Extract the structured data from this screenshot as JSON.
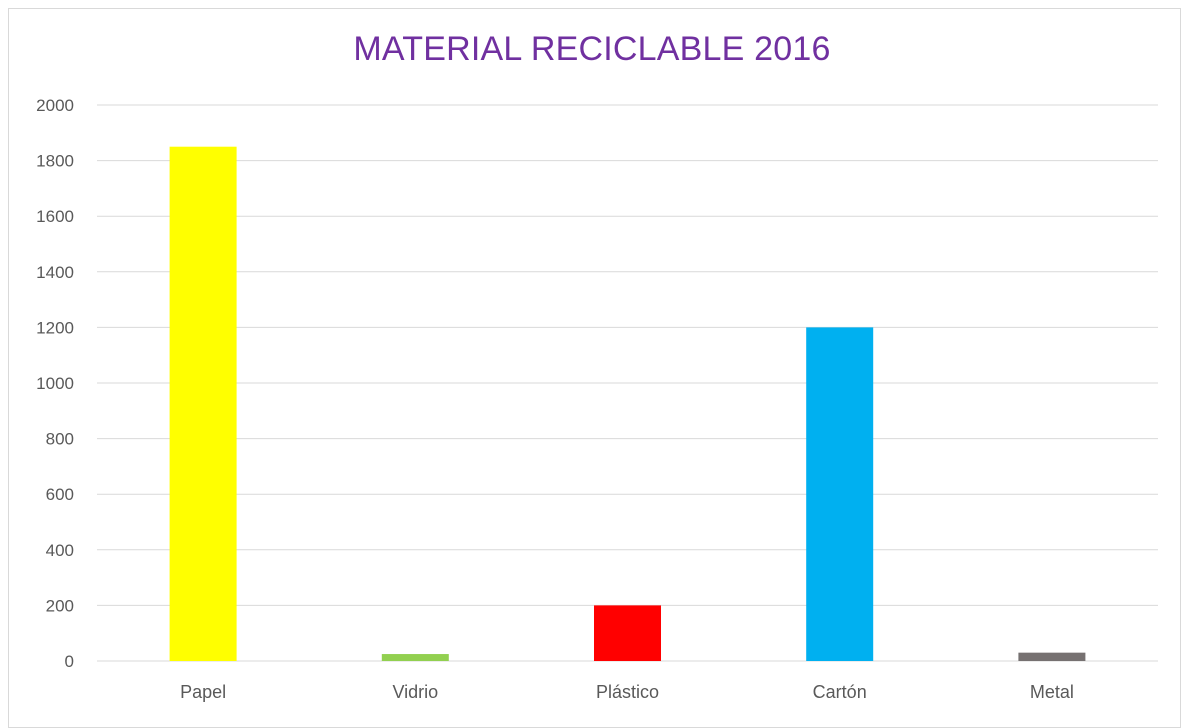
{
  "chart_data": {
    "type": "bar",
    "title": "MATERIAL RECICLABLE 2016",
    "categories": [
      "Papel",
      "Vidrio",
      "Plástico",
      "Cartón",
      "Metal"
    ],
    "values": [
      1850,
      25,
      200,
      1200,
      30
    ],
    "bar_colors": [
      "#ffff00",
      "#92d050",
      "#ff0000",
      "#00b0f0",
      "#767171"
    ],
    "ylim": [
      0,
      2000
    ],
    "yticks": [
      0,
      200,
      400,
      600,
      800,
      1000,
      1200,
      1400,
      1600,
      1800,
      2000
    ],
    "xlabel": "",
    "ylabel": "",
    "grid": true,
    "legend": "none",
    "title_color": "#7030a0",
    "gridline_color": "#d9d9d9",
    "tick_label_color": "#595959"
  }
}
